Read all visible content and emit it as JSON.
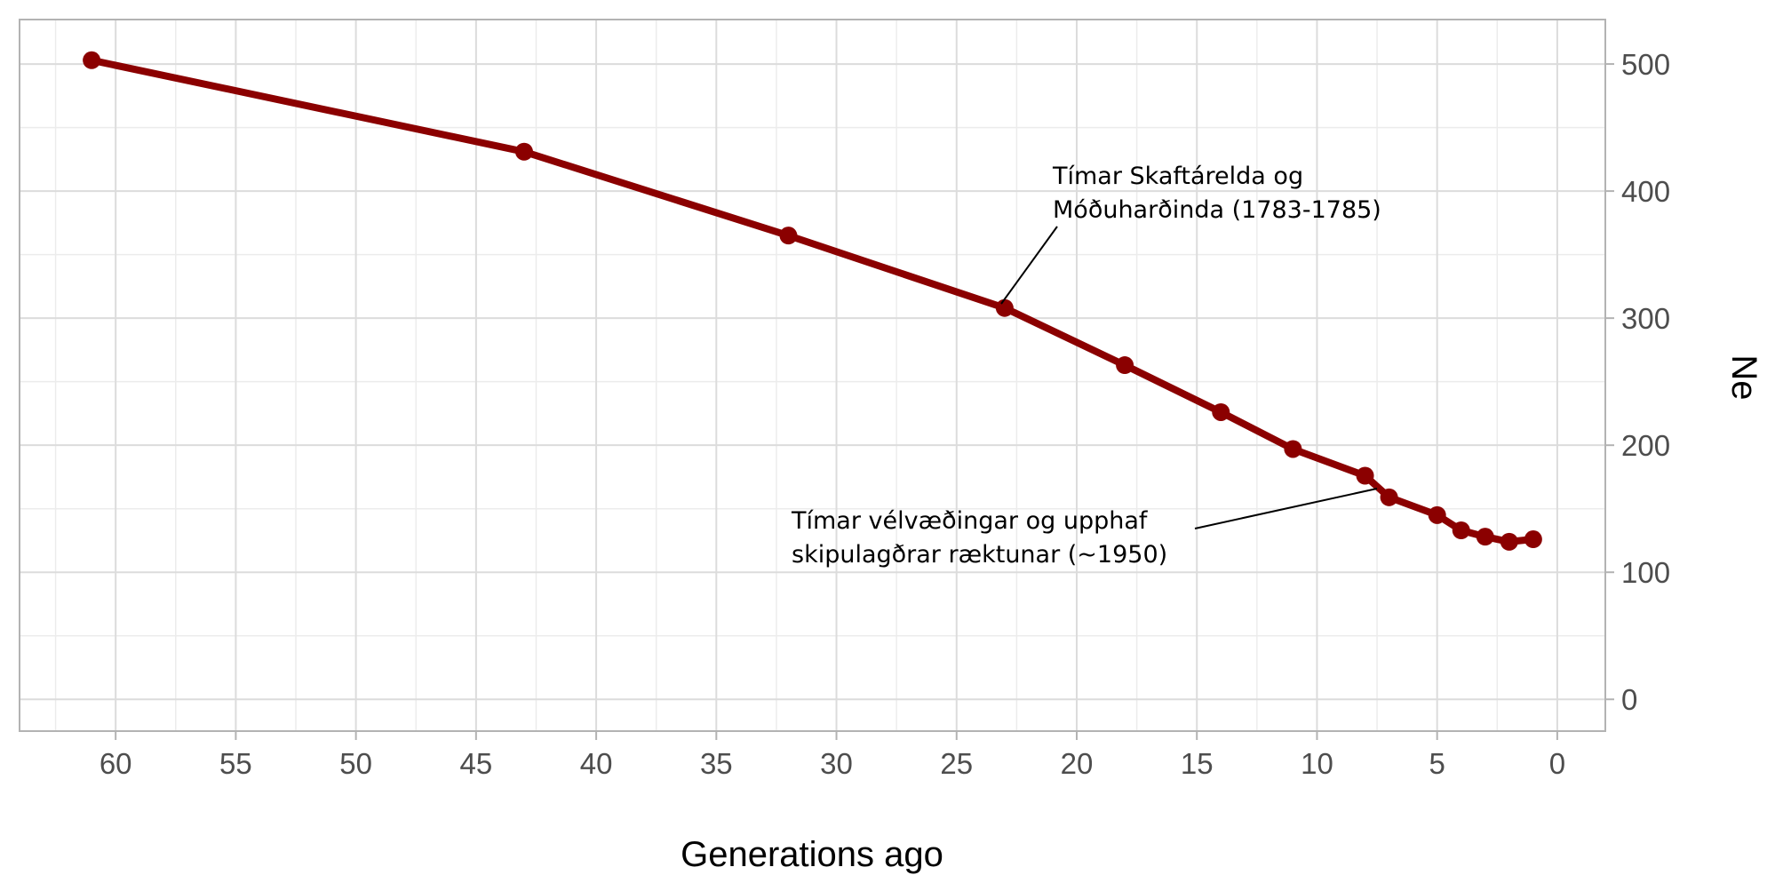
{
  "chart_data": {
    "type": "line",
    "title": "",
    "xlabel": "Generations ago",
    "ylabel": "Ne",
    "x_reversed": true,
    "xlim": [
      64,
      -2
    ],
    "ylim": [
      -25,
      535
    ],
    "x_ticks": [
      60,
      55,
      50,
      45,
      40,
      35,
      30,
      25,
      20,
      15,
      10,
      5,
      0
    ],
    "y_ticks": [
      0,
      100,
      200,
      300,
      400,
      500
    ],
    "y_axis_position": "right",
    "grid": true,
    "legend": "none",
    "series": [
      {
        "color": "#8b0000",
        "points": [
          {
            "x": 61,
            "y": 503
          },
          {
            "x": 43,
            "y": 431
          },
          {
            "x": 32,
            "y": 365
          },
          {
            "x": 23,
            "y": 308
          },
          {
            "x": 18,
            "y": 263
          },
          {
            "x": 14,
            "y": 226
          },
          {
            "x": 11,
            "y": 197
          },
          {
            "x": 8,
            "y": 176
          },
          {
            "x": 7,
            "y": 159
          },
          {
            "x": 5,
            "y": 145
          },
          {
            "x": 4,
            "y": 133
          },
          {
            "x": 3,
            "y": 128
          },
          {
            "x": 2,
            "y": 124
          },
          {
            "x": 1,
            "y": 126
          }
        ]
      }
    ],
    "annotations": [
      {
        "lines": [
          "Tímar Skaftárelda og",
          "Móðuharðinda (1783-1785)"
        ],
        "point": {
          "x": 23,
          "y": 308
        }
      },
      {
        "lines": [
          "Tímar vélvæðingar og upphaf",
          "skipulagðrar ræktunar (~1950)"
        ],
        "point": {
          "x": 8,
          "y": 168
        }
      }
    ]
  }
}
